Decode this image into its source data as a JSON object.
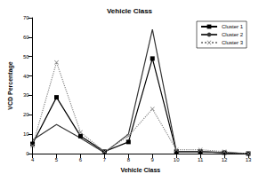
{
  "chart_data": {
    "type": "line",
    "title": "Vehicle Class",
    "x_label": "Vehicle Class",
    "y_label": "VCD Percentage",
    "categories": [
      "4",
      "5",
      "6",
      "7",
      "8",
      "9",
      "10",
      "11",
      "12",
      "13"
    ],
    "series": [
      {
        "name": "Cluster 1",
        "color": "#000000",
        "marker": "square",
        "line_style": "solid",
        "values": [
          5,
          29,
          9,
          1,
          6,
          49,
          1,
          1,
          0.5,
          0
        ]
      },
      {
        "name": "Cluster 2",
        "color": "#333333",
        "marker": "none",
        "line_style": "solid",
        "values": [
          7,
          15,
          8,
          0.5,
          10,
          64,
          1,
          1,
          0.5,
          0
        ]
      },
      {
        "name": "Cluster 3",
        "color": "#888888",
        "marker": "x",
        "line_style": "dotted",
        "values": [
          4,
          47,
          11,
          1,
          9,
          23,
          2,
          2,
          1,
          0
        ]
      }
    ],
    "ylim": [
      0,
      70
    ],
    "yticks": [
      0,
      10,
      20,
      30,
      40,
      50,
      60,
      70
    ],
    "grid": false,
    "legend": "upper right"
  }
}
